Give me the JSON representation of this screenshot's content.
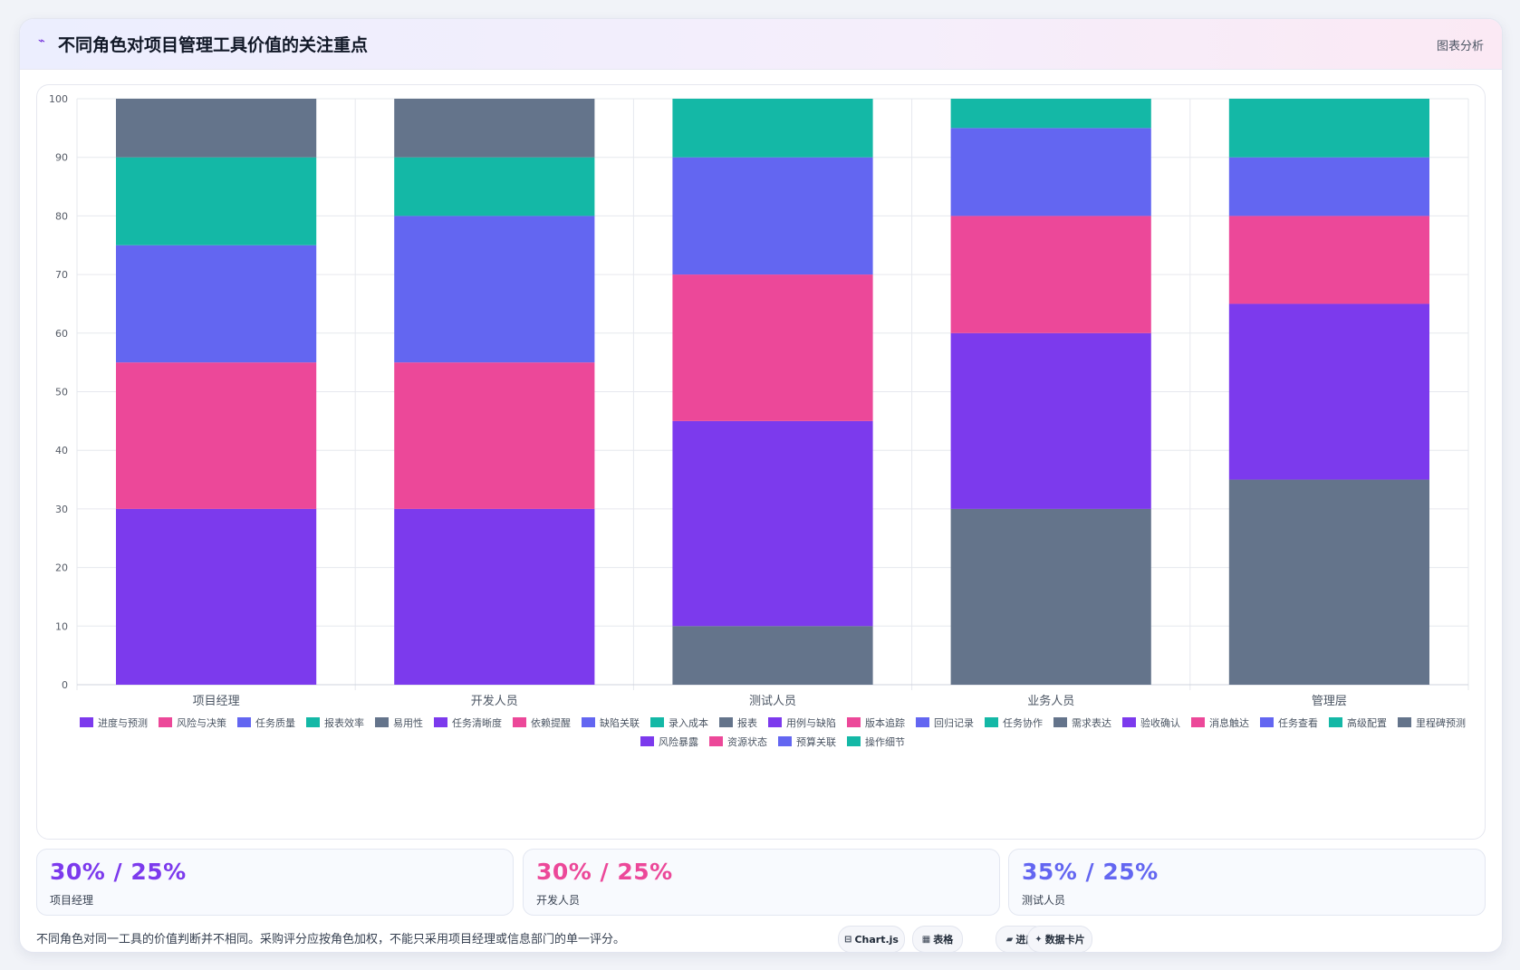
{
  "header": {
    "icon": "pulse-icon",
    "title": "不同角色对项目管理工具价值的关注重点",
    "tag": "图表分析"
  },
  "chart_data": {
    "type": "bar",
    "stacked": true,
    "categories": [
      "项目经理",
      "开发人员",
      "测试人员",
      "业务人员",
      "管理层"
    ],
    "ylim": [
      0,
      100
    ],
    "yticks": [
      0,
      10,
      20,
      30,
      40,
      50,
      60,
      70,
      80,
      90,
      100
    ],
    "grid": true,
    "legend_position": "bottom",
    "series": [
      {
        "name": "进度与预测",
        "color": "#7c3aed",
        "values": [
          30,
          null,
          null,
          null,
          null
        ]
      },
      {
        "name": "风险与决策",
        "color": "#ec4899",
        "values": [
          25,
          null,
          null,
          null,
          null
        ]
      },
      {
        "name": "任务质量",
        "color": "#6366f1",
        "values": [
          20,
          null,
          null,
          null,
          null
        ]
      },
      {
        "name": "报表效率",
        "color": "#14b8a6",
        "values": [
          15,
          null,
          null,
          null,
          null
        ]
      },
      {
        "name": "易用性",
        "color": "#64748b",
        "values": [
          10,
          null,
          null,
          null,
          null
        ]
      },
      {
        "name": "任务清晰度",
        "color": "#7c3aed",
        "values": [
          null,
          30,
          null,
          null,
          null
        ]
      },
      {
        "name": "依赖提醒",
        "color": "#ec4899",
        "values": [
          null,
          25,
          null,
          null,
          null
        ]
      },
      {
        "name": "缺陷关联",
        "color": "#6366f1",
        "values": [
          null,
          25,
          null,
          null,
          null
        ]
      },
      {
        "name": "录入成本",
        "color": "#14b8a6",
        "values": [
          null,
          10,
          null,
          null,
          null
        ]
      },
      {
        "name": "报表",
        "color": "#64748b",
        "values": [
          null,
          10,
          10,
          null,
          null
        ]
      },
      {
        "name": "用例与缺陷",
        "color": "#7c3aed",
        "values": [
          null,
          null,
          35,
          null,
          null
        ]
      },
      {
        "name": "版本追踪",
        "color": "#ec4899",
        "values": [
          null,
          null,
          25,
          null,
          null
        ]
      },
      {
        "name": "回归记录",
        "color": "#6366f1",
        "values": [
          null,
          null,
          20,
          null,
          null
        ]
      },
      {
        "name": "任务协作",
        "color": "#14b8a6",
        "values": [
          null,
          null,
          10,
          null,
          null
        ]
      },
      {
        "name": "需求表达",
        "color": "#64748b",
        "values": [
          null,
          null,
          null,
          30,
          null
        ]
      },
      {
        "name": "验收确认",
        "color": "#7c3aed",
        "values": [
          null,
          null,
          null,
          30,
          null
        ]
      },
      {
        "name": "消息触达",
        "color": "#ec4899",
        "values": [
          null,
          null,
          null,
          20,
          null
        ]
      },
      {
        "name": "任务查看",
        "color": "#6366f1",
        "values": [
          null,
          null,
          null,
          15,
          null
        ]
      },
      {
        "name": "高级配置",
        "color": "#14b8a6",
        "values": [
          null,
          null,
          null,
          5,
          null
        ]
      },
      {
        "name": "里程碑预测",
        "color": "#64748b",
        "values": [
          null,
          null,
          null,
          null,
          35
        ]
      },
      {
        "name": "风险暴露",
        "color": "#7c3aed",
        "values": [
          null,
          null,
          null,
          null,
          30
        ]
      },
      {
        "name": "资源状态",
        "color": "#ec4899",
        "values": [
          null,
          null,
          null,
          null,
          15
        ]
      },
      {
        "name": "预算关联",
        "color": "#6366f1",
        "values": [
          null,
          null,
          null,
          null,
          10
        ]
      },
      {
        "name": "操作细节",
        "color": "#14b8a6",
        "values": [
          null,
          null,
          null,
          null,
          10
        ]
      }
    ]
  },
  "stats": [
    {
      "value": "30% / 25%",
      "label": "项目经理",
      "color": "#7c3aed"
    },
    {
      "value": "30% / 25%",
      "label": "开发人员",
      "color": "#ec4899"
    },
    {
      "value": "35% / 25%",
      "label": "测试人员",
      "color": "#6366f1"
    }
  ],
  "footnote": "不同角色对同一工具的价值判断并不相同。采购评分应按角色加权，不能只采用项目经理或信息部门的单一评分。",
  "pills": [
    {
      "icon": "chart-icon",
      "glyph": "⊟",
      "label": "Chart.js"
    },
    {
      "icon": "table-icon",
      "glyph": "▦",
      "label": "表格"
    },
    {
      "icon": "progress-icon",
      "glyph": "▰",
      "label": "进度"
    },
    {
      "icon": "sparkle-icon",
      "glyph": "✦",
      "label": "数据卡片"
    }
  ]
}
